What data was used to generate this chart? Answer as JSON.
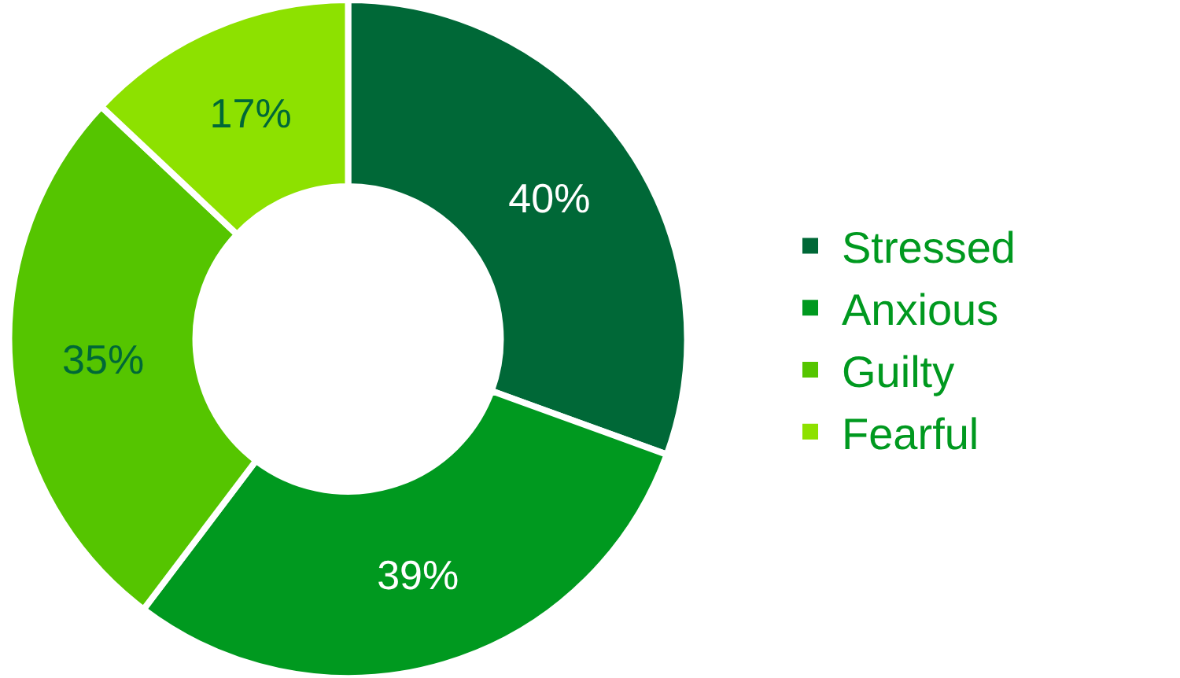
{
  "chart_data": {
    "type": "donut",
    "categories": [
      "Stressed",
      "Anxious",
      "Guilty",
      "Fearful"
    ],
    "values": [
      40,
      39,
      35,
      17
    ],
    "value_labels": [
      "40%",
      "39%",
      "35%",
      "17%"
    ],
    "colors": [
      "#006837",
      "#00991f",
      "#55c500",
      "#8de100"
    ],
    "legend": "right"
  }
}
